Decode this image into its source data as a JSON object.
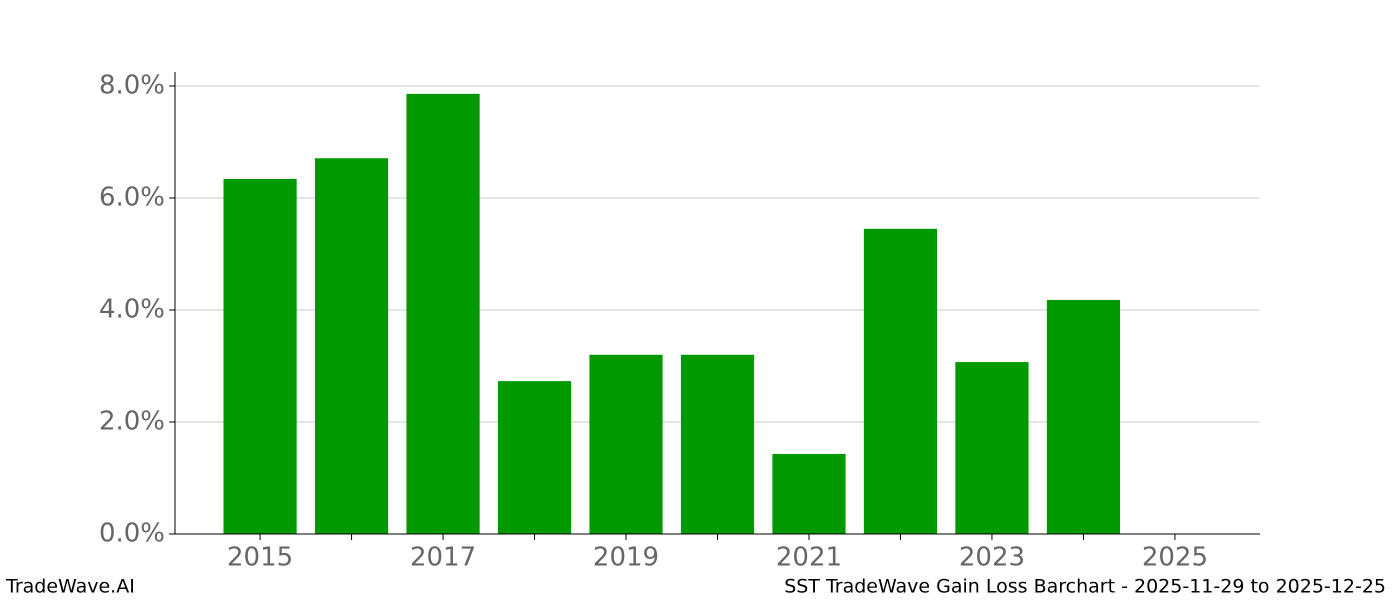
{
  "chart_data": {
    "type": "bar",
    "x": [
      2015,
      2016,
      2017,
      2018,
      2019,
      2020,
      2021,
      2022,
      2023,
      2024
    ],
    "values": [
      6.34,
      6.71,
      7.86,
      2.73,
      3.2,
      3.2,
      1.43,
      5.45,
      3.07,
      4.18
    ],
    "color": "#009900",
    "xlim": [
      2014.07,
      2025.93
    ],
    "xticks": [
      2015,
      2017,
      2019,
      2021,
      2023,
      2025
    ],
    "xminor_ticks": [
      2016,
      2018,
      2020,
      2022,
      2024
    ],
    "ylim": [
      0,
      8.25
    ],
    "yticks": [
      {
        "value": 0,
        "label": "0.0%"
      },
      {
        "value": 2,
        "label": "2.0%"
      },
      {
        "value": 4,
        "label": "4.0%"
      },
      {
        "value": 6,
        "label": "6.0%"
      },
      {
        "value": 8,
        "label": "8.0%"
      }
    ],
    "grid": true,
    "footer_left": "TradeWave.AI",
    "footer_right": "SST TradeWave Gain Loss Barchart - 2025-11-29 to 2025-12-25"
  }
}
